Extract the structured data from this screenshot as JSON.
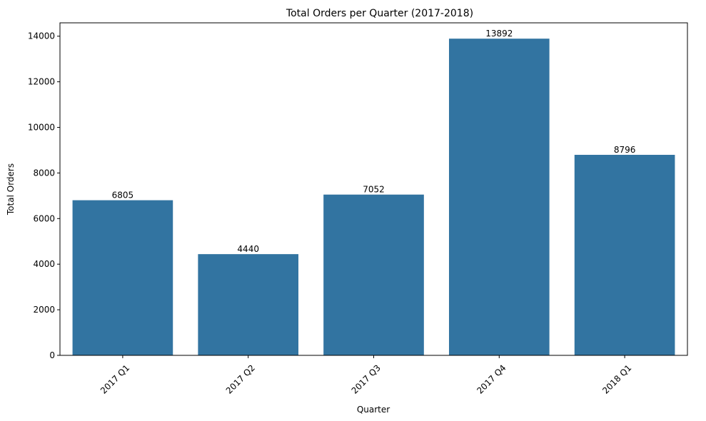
{
  "chart_data": {
    "type": "bar",
    "title": "Total Orders per Quarter (2017-2018)",
    "xlabel": "Quarter",
    "ylabel": "Total Orders",
    "categories": [
      "2017 Q1",
      "2017 Q2",
      "2017 Q3",
      "2017 Q4",
      "2018 Q1"
    ],
    "values": [
      6805,
      4440,
      7052,
      13892,
      8796
    ],
    "data_labels": [
      "6805",
      "4440",
      "7052",
      "13892",
      "8796"
    ],
    "ylim": [
      0,
      14586
    ],
    "yticks": [
      0,
      2000,
      4000,
      6000,
      8000,
      10000,
      12000,
      14000
    ],
    "ytick_labels": [
      "0",
      "2000",
      "4000",
      "6000",
      "8000",
      "10000",
      "12000",
      "14000"
    ],
    "grid": false,
    "bar_color": "#3274a1",
    "x_tick_rotation": "45"
  }
}
